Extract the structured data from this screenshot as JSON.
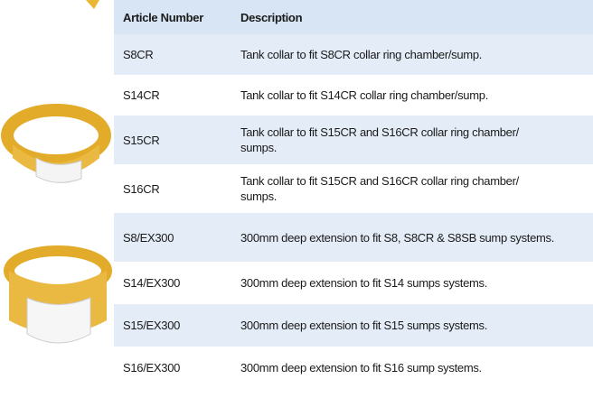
{
  "table": {
    "headers": [
      "Article Number",
      "Description"
    ],
    "rows": [
      [
        "S8CR",
        "Tank collar to fit S8CR collar ring chamber/sump."
      ],
      [
        "S14CR",
        "Tank collar to fit S14CR collar ring chamber/sump."
      ],
      [
        "S15CR",
        "Tank collar to fit S15CR and S16CR collar ring chamber/ sumps."
      ],
      [
        "S16CR",
        "Tank collar to fit S15CR and S16CR collar ring chamber/ sumps."
      ],
      [
        "S8/EX300",
        "300mm deep extension to fit S8, S8CR & S8SB sump systems."
      ],
      [
        "S14/EX300",
        "300mm deep extension to fit S14 sumps systems."
      ],
      [
        "S15/EX300",
        "300mm deep extension to fit S15 sumps systems."
      ],
      [
        "S16/EX300",
        "300mm deep extension to fit S16 sump systems."
      ]
    ]
  }
}
